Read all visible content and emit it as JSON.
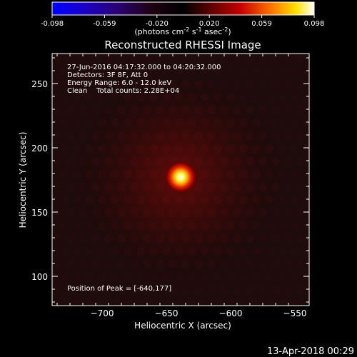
{
  "colorbar": {
    "tick_labels": [
      "-0.098",
      "-0.059",
      "-0.020",
      "0.020",
      "0.059",
      "0.098"
    ],
    "units_pre": "(photons cm",
    "units_exp1": "-2",
    "units_mid": " s",
    "units_exp2": "-1",
    "units_mid2": " asec",
    "units_exp3": "-2",
    "units_post": ")"
  },
  "plot": {
    "title": "Reconstructed RHESSI Image",
    "info_lines": [
      "27-Jun-2016 04:17:32.000 to 04:20:32.000",
      "Detectors: 3F 8F, Att 0",
      "Energy Range: 6.0 - 12.0 keV",
      "Clean    Total counts: 2.28E+04"
    ],
    "peak_label": "Position of Peak = [-640,177]",
    "xlabel": "Heliocentric X (arcsec)",
    "ylabel": "Heliocentric Y (arcsec)",
    "x_ticks": [
      "−700",
      "−650",
      "−600",
      "−550"
    ],
    "y_ticks": [
      "250",
      "200",
      "150",
      "100"
    ]
  },
  "footer": {
    "timestamp": "13-Apr-2018 00:29"
  }
}
